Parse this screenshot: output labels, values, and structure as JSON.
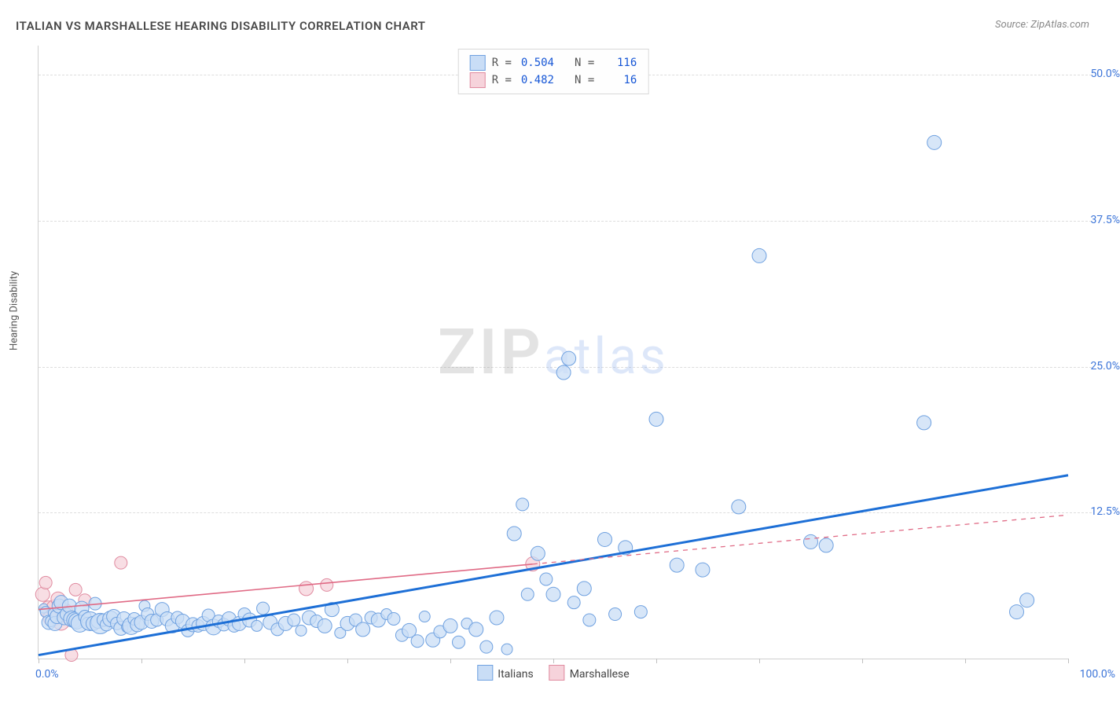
{
  "title": "ITALIAN VS MARSHALLESE HEARING DISABILITY CORRELATION CHART",
  "source": "Source: ZipAtlas.com",
  "ylabel": "Hearing Disability",
  "watermark": {
    "a": "ZIP",
    "b": "atlas"
  },
  "chart": {
    "type": "scatter",
    "xlim": [
      0,
      100
    ],
    "ylim": [
      0,
      52.5
    ],
    "x_tick_step": 10,
    "y_ticks": [
      12.5,
      25.0,
      37.5,
      50.0
    ],
    "y_tick_labels": [
      "12.5%",
      "25.0%",
      "37.5%",
      "50.0%"
    ],
    "x_min_label": "0.0%",
    "x_max_label": "100.0%",
    "grid_color": "#dddddd",
    "axis_color": "#d0d0d0",
    "background_color": "#ffffff",
    "tick_label_color": "#3b74d8",
    "xaxis_label_color": "#3b74d8"
  },
  "series": [
    {
      "name": "Italians",
      "marker_fill": "#c9ddf6",
      "marker_stroke": "#6fa1e0",
      "trend_color": "#1d6fd6",
      "trend_dash": "none",
      "trend_width": 3,
      "r_value": "0.504",
      "n_value": "116",
      "trend": {
        "x1": 0,
        "y1": 0.3,
        "x2": 100,
        "y2": 15.7
      },
      "points": [
        {
          "x": 0.5,
          "y": 4.3,
          "r": 6
        },
        {
          "x": 0.7,
          "y": 4.0,
          "r": 7
        },
        {
          "x": 1.0,
          "y": 3.1,
          "r": 9
        },
        {
          "x": 1.2,
          "y": 3.2,
          "r": 7
        },
        {
          "x": 1.4,
          "y": 3.9,
          "r": 6
        },
        {
          "x": 1.6,
          "y": 3.0,
          "r": 9
        },
        {
          "x": 1.8,
          "y": 3.6,
          "r": 9
        },
        {
          "x": 2.0,
          "y": 4.5,
          "r": 9
        },
        {
          "x": 2.2,
          "y": 4.8,
          "r": 9
        },
        {
          "x": 2.5,
          "y": 3.5,
          "r": 9
        },
        {
          "x": 2.7,
          "y": 3.8,
          "r": 8
        },
        {
          "x": 3.0,
          "y": 4.5,
          "r": 9
        },
        {
          "x": 3.2,
          "y": 3.4,
          "r": 10
        },
        {
          "x": 3.5,
          "y": 3.3,
          "r": 10
        },
        {
          "x": 3.7,
          "y": 3.2,
          "r": 10
        },
        {
          "x": 4.0,
          "y": 3.0,
          "r": 11
        },
        {
          "x": 4.2,
          "y": 4.3,
          "r": 9
        },
        {
          "x": 4.5,
          "y": 3.6,
          "r": 8
        },
        {
          "x": 4.8,
          "y": 3.0,
          "r": 8
        },
        {
          "x": 5.0,
          "y": 3.2,
          "r": 12
        },
        {
          "x": 5.3,
          "y": 3.0,
          "r": 9
        },
        {
          "x": 5.5,
          "y": 4.7,
          "r": 8
        },
        {
          "x": 5.8,
          "y": 3.2,
          "r": 9
        },
        {
          "x": 6.0,
          "y": 3.0,
          "r": 13
        },
        {
          "x": 6.3,
          "y": 3.3,
          "r": 8
        },
        {
          "x": 6.6,
          "y": 2.9,
          "r": 8
        },
        {
          "x": 7.0,
          "y": 3.4,
          "r": 10
        },
        {
          "x": 7.3,
          "y": 3.6,
          "r": 9
        },
        {
          "x": 7.6,
          "y": 3.0,
          "r": 8
        },
        {
          "x": 8.0,
          "y": 2.6,
          "r": 9
        },
        {
          "x": 8.3,
          "y": 3.4,
          "r": 9
        },
        {
          "x": 8.6,
          "y": 2.7,
          "r": 7
        },
        {
          "x": 9.0,
          "y": 2.8,
          "r": 11
        },
        {
          "x": 9.3,
          "y": 3.4,
          "r": 8
        },
        {
          "x": 9.6,
          "y": 2.9,
          "r": 9
        },
        {
          "x": 10.0,
          "y": 3.1,
          "r": 9
        },
        {
          "x": 10.3,
          "y": 4.5,
          "r": 7
        },
        {
          "x": 10.6,
          "y": 3.8,
          "r": 8
        },
        {
          "x": 11.0,
          "y": 3.2,
          "r": 9
        },
        {
          "x": 11.5,
          "y": 3.3,
          "r": 8
        },
        {
          "x": 12.0,
          "y": 4.2,
          "r": 9
        },
        {
          "x": 12.5,
          "y": 3.4,
          "r": 9
        },
        {
          "x": 13.0,
          "y": 2.8,
          "r": 9
        },
        {
          "x": 13.5,
          "y": 3.5,
          "r": 8
        },
        {
          "x": 14.0,
          "y": 3.2,
          "r": 9
        },
        {
          "x": 14.5,
          "y": 2.4,
          "r": 8
        },
        {
          "x": 15.0,
          "y": 2.9,
          "r": 9
        },
        {
          "x": 15.5,
          "y": 2.8,
          "r": 8
        },
        {
          "x": 16.0,
          "y": 3.0,
          "r": 9
        },
        {
          "x": 16.5,
          "y": 3.7,
          "r": 8
        },
        {
          "x": 17.0,
          "y": 2.7,
          "r": 10
        },
        {
          "x": 17.5,
          "y": 3.2,
          "r": 8
        },
        {
          "x": 18.0,
          "y": 2.9,
          "r": 8
        },
        {
          "x": 18.5,
          "y": 3.4,
          "r": 9
        },
        {
          "x": 19.0,
          "y": 2.8,
          "r": 8
        },
        {
          "x": 19.5,
          "y": 3.0,
          "r": 9
        },
        {
          "x": 20.0,
          "y": 3.8,
          "r": 8
        },
        {
          "x": 20.5,
          "y": 3.3,
          "r": 9
        },
        {
          "x": 21.2,
          "y": 2.8,
          "r": 7
        },
        {
          "x": 21.8,
          "y": 4.3,
          "r": 8
        },
        {
          "x": 22.5,
          "y": 3.1,
          "r": 9
        },
        {
          "x": 23.2,
          "y": 2.5,
          "r": 8
        },
        {
          "x": 24.0,
          "y": 3.0,
          "r": 9
        },
        {
          "x": 24.8,
          "y": 3.3,
          "r": 8
        },
        {
          "x": 25.5,
          "y": 2.4,
          "r": 7
        },
        {
          "x": 26.3,
          "y": 3.5,
          "r": 9
        },
        {
          "x": 27.0,
          "y": 3.2,
          "r": 8
        },
        {
          "x": 27.8,
          "y": 2.8,
          "r": 9
        },
        {
          "x": 28.5,
          "y": 4.2,
          "r": 9
        },
        {
          "x": 29.3,
          "y": 2.2,
          "r": 7
        },
        {
          "x": 30.0,
          "y": 3.0,
          "r": 9
        },
        {
          "x": 30.8,
          "y": 3.3,
          "r": 8
        },
        {
          "x": 31.5,
          "y": 2.5,
          "r": 9
        },
        {
          "x": 32.3,
          "y": 3.5,
          "r": 8
        },
        {
          "x": 33.0,
          "y": 3.3,
          "r": 9
        },
        {
          "x": 33.8,
          "y": 3.8,
          "r": 7
        },
        {
          "x": 34.5,
          "y": 3.4,
          "r": 8
        },
        {
          "x": 35.3,
          "y": 2.0,
          "r": 8
        },
        {
          "x": 36.0,
          "y": 2.4,
          "r": 9
        },
        {
          "x": 36.8,
          "y": 1.5,
          "r": 8
        },
        {
          "x": 37.5,
          "y": 3.6,
          "r": 7
        },
        {
          "x": 38.3,
          "y": 1.6,
          "r": 9
        },
        {
          "x": 39.0,
          "y": 2.3,
          "r": 8
        },
        {
          "x": 40.0,
          "y": 2.8,
          "r": 9
        },
        {
          "x": 40.8,
          "y": 1.4,
          "r": 8
        },
        {
          "x": 41.6,
          "y": 3.0,
          "r": 7
        },
        {
          "x": 42.5,
          "y": 2.5,
          "r": 9
        },
        {
          "x": 43.5,
          "y": 1.0,
          "r": 8
        },
        {
          "x": 44.5,
          "y": 3.5,
          "r": 9
        },
        {
          "x": 45.5,
          "y": 0.8,
          "r": 7
        },
        {
          "x": 46.2,
          "y": 10.7,
          "r": 9
        },
        {
          "x": 47.0,
          "y": 13.2,
          "r": 8
        },
        {
          "x": 47.5,
          "y": 5.5,
          "r": 8
        },
        {
          "x": 48.5,
          "y": 9.0,
          "r": 9
        },
        {
          "x": 49.3,
          "y": 6.8,
          "r": 8
        },
        {
          "x": 50.0,
          "y": 5.5,
          "r": 9
        },
        {
          "x": 51.0,
          "y": 24.5,
          "r": 9
        },
        {
          "x": 51.5,
          "y": 25.7,
          "r": 9
        },
        {
          "x": 52.0,
          "y": 4.8,
          "r": 8
        },
        {
          "x": 53.0,
          "y": 6.0,
          "r": 9
        },
        {
          "x": 53.5,
          "y": 3.3,
          "r": 8
        },
        {
          "x": 55.0,
          "y": 10.2,
          "r": 9
        },
        {
          "x": 56.0,
          "y": 3.8,
          "r": 8
        },
        {
          "x": 57.0,
          "y": 9.5,
          "r": 9
        },
        {
          "x": 58.5,
          "y": 4.0,
          "r": 8
        },
        {
          "x": 60.0,
          "y": 20.5,
          "r": 9
        },
        {
          "x": 62.0,
          "y": 8.0,
          "r": 9
        },
        {
          "x": 64.5,
          "y": 7.6,
          "r": 9
        },
        {
          "x": 68.0,
          "y": 13.0,
          "r": 9
        },
        {
          "x": 70.0,
          "y": 34.5,
          "r": 9
        },
        {
          "x": 75.0,
          "y": 10.0,
          "r": 9
        },
        {
          "x": 76.5,
          "y": 9.7,
          "r": 9
        },
        {
          "x": 86.0,
          "y": 20.2,
          "r": 9
        },
        {
          "x": 87.0,
          "y": 44.2,
          "r": 9
        },
        {
          "x": 95.0,
          "y": 4.0,
          "r": 9
        },
        {
          "x": 96.0,
          "y": 5.0,
          "r": 9
        }
      ]
    },
    {
      "name": "Marshallese",
      "marker_fill": "#f6d3db",
      "marker_stroke": "#e08ba0",
      "trend_color": "#e06a85",
      "trend_dash": "solid_then_dashed",
      "trend_solid_end_x": 48,
      "trend_dash_pattern": "6,6",
      "trend_width": 1.6,
      "r_value": "0.482",
      "n_value": "16",
      "trend": {
        "x1": 0,
        "y1": 4.2,
        "x2": 100,
        "y2": 12.3
      },
      "points": [
        {
          "x": 0.4,
          "y": 5.5,
          "r": 9
        },
        {
          "x": 0.7,
          "y": 6.5,
          "r": 8
        },
        {
          "x": 1.0,
          "y": 4.2,
          "r": 11
        },
        {
          "x": 1.3,
          "y": 3.5,
          "r": 11
        },
        {
          "x": 1.6,
          "y": 4.3,
          "r": 11
        },
        {
          "x": 1.9,
          "y": 5.1,
          "r": 9
        },
        {
          "x": 2.2,
          "y": 3.1,
          "r": 10
        },
        {
          "x": 2.5,
          "y": 4.0,
          "r": 11
        },
        {
          "x": 2.8,
          "y": 3.6,
          "r": 8
        },
        {
          "x": 3.2,
          "y": 0.3,
          "r": 8
        },
        {
          "x": 3.6,
          "y": 5.9,
          "r": 8
        },
        {
          "x": 4.5,
          "y": 5.0,
          "r": 8
        },
        {
          "x": 8.0,
          "y": 8.2,
          "r": 8
        },
        {
          "x": 26.0,
          "y": 6.0,
          "r": 9
        },
        {
          "x": 28.0,
          "y": 6.3,
          "r": 8
        },
        {
          "x": 48.0,
          "y": 8.1,
          "r": 9
        }
      ]
    }
  ],
  "bottom_legend": [
    {
      "label": "Italians",
      "fill": "#c9ddf6",
      "stroke": "#6fa1e0"
    },
    {
      "label": "Marshallese",
      "fill": "#f6d3db",
      "stroke": "#e08ba0"
    }
  ],
  "stats_legend": {
    "rows": [
      {
        "fill": "#c9ddf6",
        "stroke": "#6fa1e0",
        "r_label": "R =",
        "r": "0.504",
        "n_label": "N =",
        "n": "116"
      },
      {
        "fill": "#f6d3db",
        "stroke": "#e08ba0",
        "r_label": "R =",
        "r": "0.482",
        "n_label": "N =",
        "n": "16"
      }
    ]
  }
}
